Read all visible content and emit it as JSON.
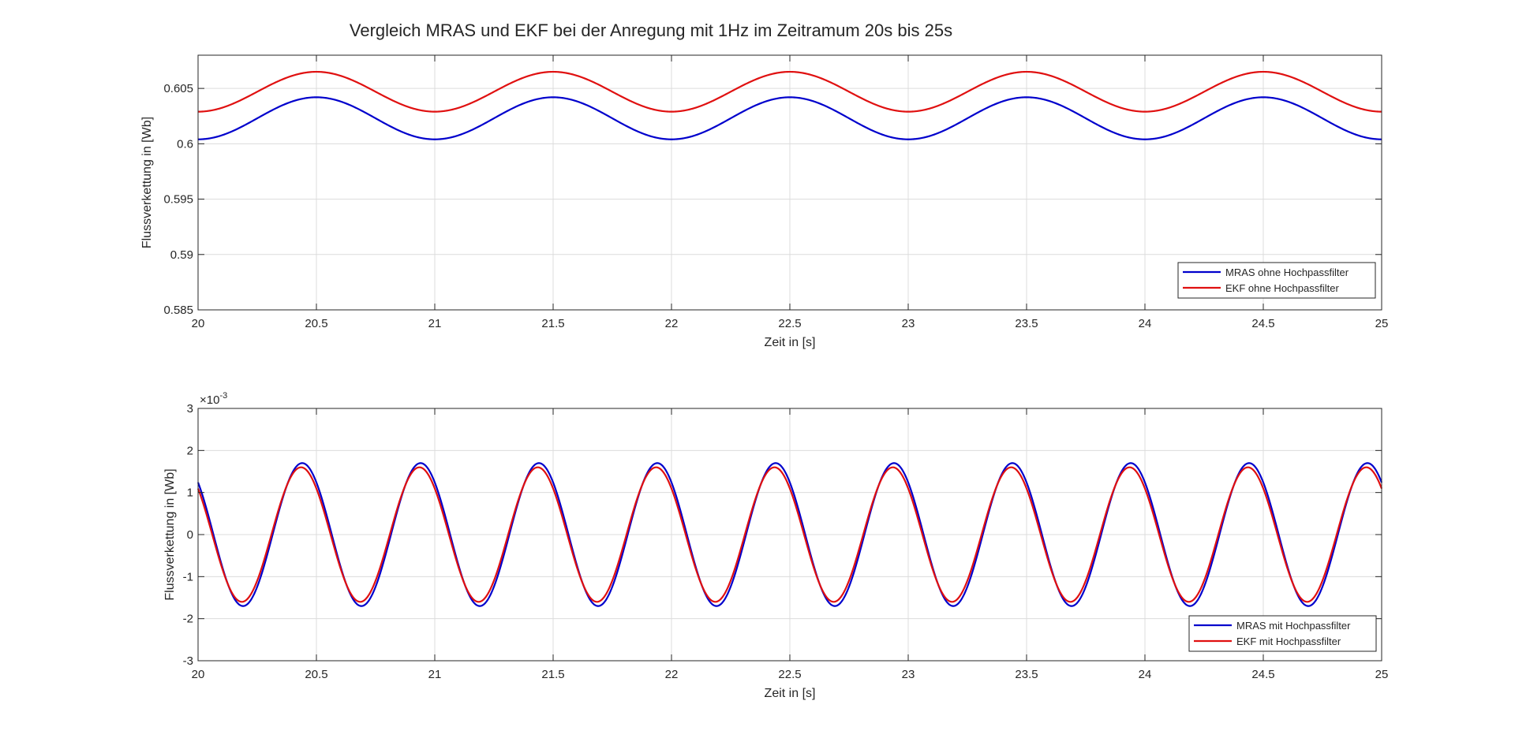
{
  "figure_title": "Vergleich MRAS und EKF bei der Anregung mit 1Hz im Zeitramum 20s bis 25s",
  "chart_data": [
    {
      "type": "line",
      "xlabel": "Zeit in [s]",
      "ylabel": "Flussverkettung in [Wb]",
      "xlim": [
        20,
        25
      ],
      "ylim": [
        0.585,
        0.608
      ],
      "xticks": [
        20,
        20.5,
        21,
        21.5,
        22,
        22.5,
        23,
        23.5,
        24,
        24.5,
        25
      ],
      "xtick_labels": [
        "20",
        "20.5",
        "21",
        "21.5",
        "22",
        "22.5",
        "23",
        "23.5",
        "24",
        "24.5",
        "25"
      ],
      "yticks": [
        0.585,
        0.59,
        0.595,
        0.6,
        0.605
      ],
      "ytick_labels": [
        "0.585",
        "0.59",
        "0.595",
        "0.6",
        "0.605"
      ],
      "grid": true,
      "legend_position": "bottom-right",
      "series": [
        {
          "name": "MRAS ohne Hochpassfilter",
          "color": "#0000cc",
          "offset": 0.6023,
          "amplitude": 0.0019,
          "frequency_hz": 1,
          "peak_time": 20.5
        },
        {
          "name": "EKF ohne Hochpassfilter",
          "color": "#e01010",
          "offset": 0.6047,
          "amplitude": 0.0018,
          "frequency_hz": 1,
          "peak_time": 20.5
        }
      ]
    },
    {
      "type": "line",
      "xlabel": "Zeit in [s]",
      "ylabel": "Flussverkettung in [Wb]",
      "xlim": [
        20,
        25
      ],
      "ylim": [
        -3,
        3
      ],
      "exponent_label": "×10",
      "exponent_power": "-3",
      "xticks": [
        20,
        20.5,
        21,
        21.5,
        22,
        22.5,
        23,
        23.5,
        24,
        24.5,
        25
      ],
      "xtick_labels": [
        "20",
        "20.5",
        "21",
        "21.5",
        "22",
        "22.5",
        "23",
        "23.5",
        "24",
        "24.5",
        "25"
      ],
      "yticks": [
        -3,
        -2,
        -1,
        0,
        1,
        2,
        3
      ],
      "ytick_labels": [
        "-3",
        "-2",
        "-1",
        "0",
        "1",
        "2",
        "3"
      ],
      "grid": true,
      "legend_position": "bottom-right",
      "series": [
        {
          "name": "MRAS mit Hochpassfilter",
          "color": "#0000cc",
          "offset": 0,
          "amplitude": 1.7,
          "frequency_hz": 2,
          "peak_time": 20.44
        },
        {
          "name": "EKF mit Hochpassfilter",
          "color": "#e01010",
          "offset": 0,
          "amplitude": 1.6,
          "frequency_hz": 2,
          "peak_time": 20.435
        }
      ]
    }
  ]
}
